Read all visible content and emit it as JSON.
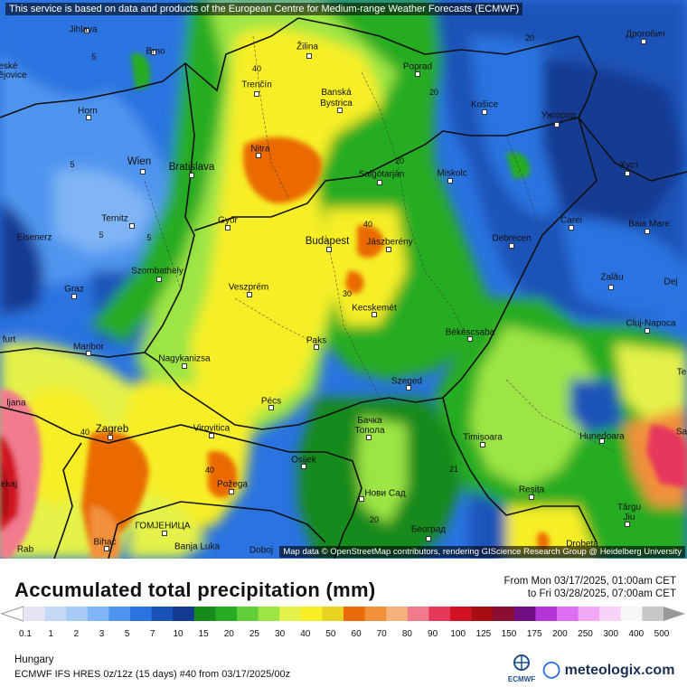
{
  "map": {
    "attribution_top": "This service is based on data and products of the European Centre for Medium-range Weather Forecasts (ECMWF)",
    "attribution_bottom": "Map data © OpenStreetMap contributors, rendering GIScience Research Group @ Heidelberg University",
    "cities": [
      {
        "name": "Jihlava"
      },
      {
        "name": "Brno"
      },
      {
        "name": "eské\nějovice"
      },
      {
        "name": "Horn"
      },
      {
        "name": "Wien"
      },
      {
        "name": "Bratislava"
      },
      {
        "name": "Ternitz"
      },
      {
        "name": "Eisenerz"
      },
      {
        "name": "Graz"
      },
      {
        "name": "Szombathely"
      },
      {
        "name": "Maribor"
      },
      {
        "name": "ljana"
      },
      {
        "name": "furt"
      },
      {
        "name": "Zagreb"
      },
      {
        "name": "ekaj"
      },
      {
        "name": "Rab"
      },
      {
        "name": "Bihać"
      },
      {
        "name": "ГОМЈЕНИЦА"
      },
      {
        "name": "Banja Luka"
      },
      {
        "name": "Doboj"
      },
      {
        "name": "Požega"
      },
      {
        "name": "Virovitica"
      },
      {
        "name": "Nagykanizsa"
      },
      {
        "name": "Pécs"
      },
      {
        "name": "Osijek"
      },
      {
        "name": "Paks"
      },
      {
        "name": "Veszprém"
      },
      {
        "name": "Győr"
      },
      {
        "name": "Nitra"
      },
      {
        "name": "Trenčín"
      },
      {
        "name": "Žilina"
      },
      {
        "name": "Banská\nBystrica"
      },
      {
        "name": "Poprad"
      },
      {
        "name": "Košice"
      },
      {
        "name": "Salgótarján"
      },
      {
        "name": "Miskolc"
      },
      {
        "name": "Budapest"
      },
      {
        "name": "Jászberény"
      },
      {
        "name": "Kecskemét"
      },
      {
        "name": "Debrecen"
      },
      {
        "name": "Békéscsaba"
      },
      {
        "name": "Szeged"
      },
      {
        "name": "Бачка\nТопола"
      },
      {
        "name": "Нови Сад"
      },
      {
        "name": "Београд"
      },
      {
        "name": "Timișoara"
      },
      {
        "name": "Reșița"
      },
      {
        "name": "Hunedoara"
      },
      {
        "name": "Târgu\nJiu"
      },
      {
        "name": "Drobeta"
      },
      {
        "name": "Cluj-Napoca"
      },
      {
        "name": "Zalău"
      },
      {
        "name": "Baia Mare"
      },
      {
        "name": "Carei"
      },
      {
        "name": "Ужгород"
      },
      {
        "name": "Хуст"
      },
      {
        "name": "Дрогобич"
      },
      {
        "name": "Dej"
      },
      {
        "name": "Sa"
      },
      {
        "name": "Te"
      }
    ],
    "contour_labels": [
      "5",
      "5",
      "5",
      "5",
      "40",
      "40",
      "40",
      "20",
      "30",
      "20",
      "21",
      "20",
      "20",
      "40"
    ]
  },
  "legend": {
    "title": "Accumulated total precipitation (mm)",
    "period_from": "From Mon 03/17/2025, 01:00am CET",
    "period_to": "to Fri 03/28/2025, 07:00am CET",
    "ticks": [
      "0.1",
      "1",
      "2",
      "3",
      "5",
      "7",
      "10",
      "15",
      "20",
      "25",
      "30",
      "40",
      "50",
      "60",
      "70",
      "80",
      "90",
      "100",
      "125",
      "150",
      "175",
      "200",
      "250",
      "300",
      "400",
      "500"
    ],
    "colors": [
      "#e6e3f3",
      "#c6d8f7",
      "#a6cbf7",
      "#7fb4f5",
      "#4f95ef",
      "#2a73e0",
      "#1b52b8",
      "#123a93",
      "#178a1c",
      "#27ac24",
      "#5fce38",
      "#9de545",
      "#e4f24a",
      "#f7ee25",
      "#e6d21f",
      "#ea6a06",
      "#f2903a",
      "#f6b27c",
      "#f17a8d",
      "#e6385b",
      "#d11224",
      "#a80d14",
      "#8a0d32",
      "#6f0f81",
      "#b536d8",
      "#dc6ef2",
      "#f1a9f7",
      "#f7d3f8",
      "#f7f7f7",
      "#c8c8c8"
    ]
  },
  "footer": {
    "region": "Hungary",
    "model": "ECMWF IFS HRES 0z/12z (15 days) #40 from  03/17/2025/00z",
    "ecmwf_logo_text": "ECMWF",
    "meteologix_logo_text": "meteologix.com"
  }
}
